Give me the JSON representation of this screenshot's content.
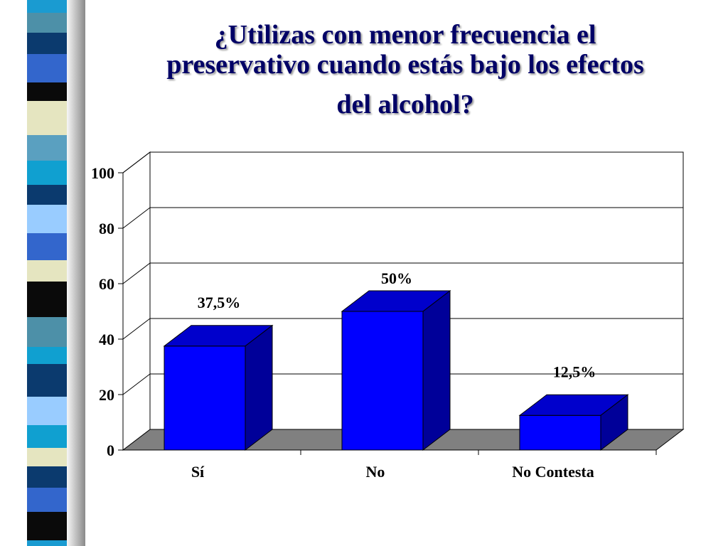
{
  "slide": {
    "title_lines": [
      "¿Utilizas con menor frecuencia el",
      "preservativo cuando estás bajo los efectos",
      "del alcohol?"
    ]
  },
  "colors": {
    "bar_front": "#0000ff",
    "bar_top": "#0000cc",
    "bar_side": "#000099",
    "floor": "#808080",
    "title": "#000066"
  },
  "chart_data": {
    "type": "bar",
    "title": "¿Utilizas con menor frecuencia el preservativo cuando estás bajo los efectos del alcohol?",
    "categories": [
      "Sí",
      "No",
      "No Contesta"
    ],
    "values": [
      37.5,
      50,
      12.5
    ],
    "data_labels": [
      "37,5%",
      "50%",
      "12,5%"
    ],
    "xlabel": "",
    "ylabel": "",
    "ylim": [
      0,
      100
    ],
    "yticks": [
      "0",
      "20",
      "40",
      "60",
      "80",
      "100"
    ],
    "grid": true,
    "style": "3d-column"
  }
}
